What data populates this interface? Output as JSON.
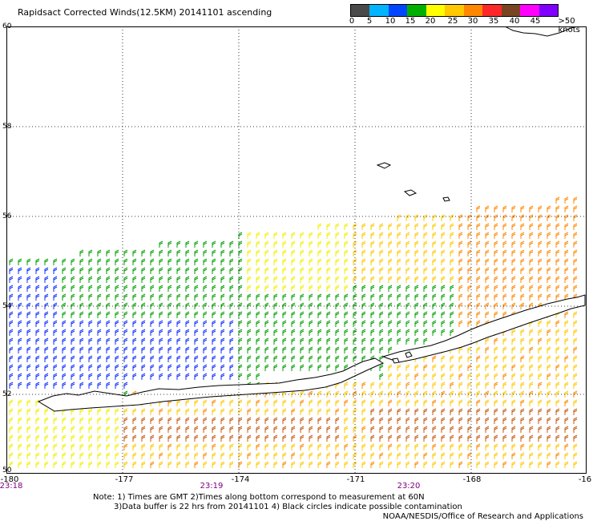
{
  "header": {
    "title": "Rapidsact Corrected Winds(12.5KM) 20141101 ascending"
  },
  "colorbar": {
    "colors": [
      "#4a4a4a",
      "#00b4ff",
      "#0046ff",
      "#00b000",
      "#ffff00",
      "#ffc800",
      "#ff8800",
      "#ff2828",
      "#7a4422",
      "#ff00ff",
      "#8000ff"
    ],
    "labels": [
      "0",
      "5",
      "10",
      "15",
      "20",
      "25",
      "30",
      "35",
      "40",
      "45",
      ">50 knots"
    ]
  },
  "map": {
    "y_labels": [
      "60",
      "58",
      "56",
      "54",
      "52",
      "50"
    ],
    "x_labels": [
      "-180",
      "-177",
      "-174",
      "-171",
      "-168",
      "-16"
    ],
    "time_labels": [
      "23:18",
      "23:19",
      "23:20"
    ]
  },
  "footer": {
    "note_line1": "Note: 1) Times are GMT 2)Times along bottom correspond to measurement at 60N",
    "note_line2": "3)Data buffer is 22 hrs from 20141101 4) Black circles indicate possible contamination",
    "credit": "NOAA/NESDIS/Office of Research and Applications"
  }
}
